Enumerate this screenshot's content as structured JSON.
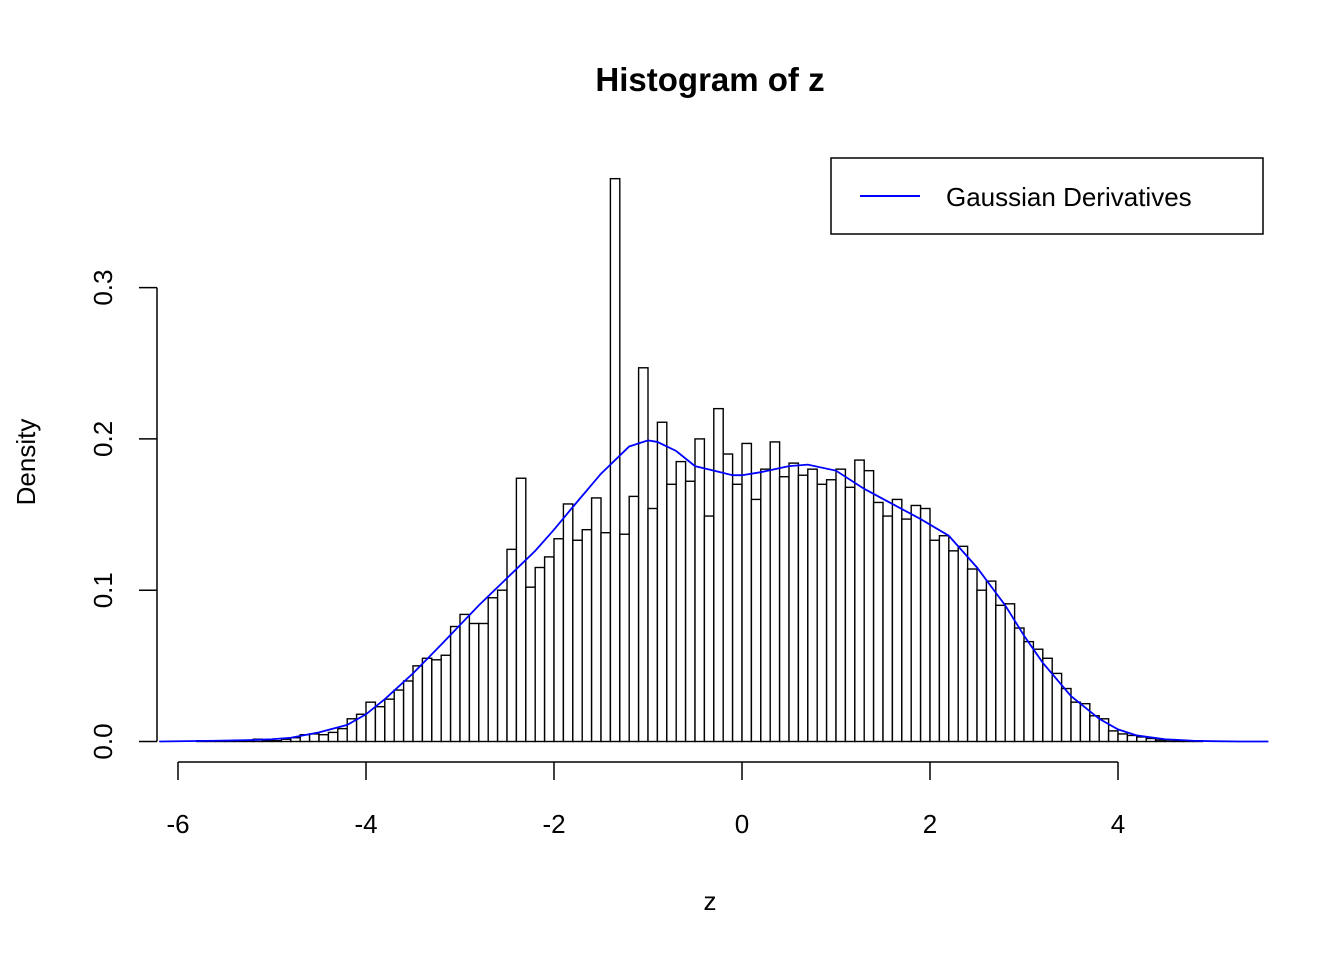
{
  "chart_data": {
    "type": "bar",
    "title": "Histogram of z",
    "xlabel": "z",
    "ylabel": "Density",
    "xlim": [
      -6.2,
      5.6
    ],
    "ylim": [
      0,
      0.38
    ],
    "x_ticks": [
      -6,
      -4,
      -2,
      0,
      2,
      4
    ],
    "x_tick_labels": [
      "-6",
      "-4",
      "-2",
      "0",
      "2",
      "4"
    ],
    "y_ticks": [
      0.0,
      0.1,
      0.2,
      0.3
    ],
    "y_tick_labels": [
      "0.0",
      "0.1",
      "0.2",
      "0.3"
    ],
    "bin_width": 0.1,
    "bins_start": -5.8,
    "histogram_values": [
      0.0005,
      0.0002,
      0.0002,
      0.0003,
      0.0005,
      0.0002,
      0.0015,
      0.0008,
      0.0005,
      0.0015,
      0.0025,
      0.0045,
      0.005,
      0.0045,
      0.006,
      0.0085,
      0.015,
      0.018,
      0.026,
      0.023,
      0.028,
      0.034,
      0.04,
      0.05,
      0.055,
      0.054,
      0.057,
      0.076,
      0.084,
      0.078,
      0.078,
      0.095,
      0.1,
      0.127,
      0.174,
      0.102,
      0.115,
      0.122,
      0.134,
      0.157,
      0.133,
      0.14,
      0.161,
      0.138,
      0.372,
      0.137,
      0.162,
      0.247,
      0.154,
      0.211,
      0.17,
      0.185,
      0.172,
      0.2,
      0.149,
      0.22,
      0.19,
      0.17,
      0.197,
      0.16,
      0.18,
      0.198,
      0.175,
      0.184,
      0.176,
      0.18,
      0.17,
      0.173,
      0.18,
      0.168,
      0.186,
      0.179,
      0.158,
      0.149,
      0.16,
      0.147,
      0.156,
      0.154,
      0.133,
      0.136,
      0.126,
      0.129,
      0.114,
      0.1,
      0.106,
      0.09,
      0.091,
      0.075,
      0.066,
      0.061,
      0.055,
      0.045,
      0.035,
      0.026,
      0.025,
      0.017,
      0.015,
      0.007,
      0.005,
      0.004,
      0.003,
      0.002,
      0.001,
      0.001,
      0.0005,
      0.0005,
      0.0003
    ],
    "series": [
      {
        "name": "Gaussian Derivatives",
        "color": "#0000ff",
        "x": [
          -6.2,
          -5.6,
          -5.2,
          -5.0,
          -4.8,
          -4.5,
          -4.2,
          -4.0,
          -3.8,
          -3.5,
          -3.2,
          -3.0,
          -2.8,
          -2.5,
          -2.2,
          -2.0,
          -1.8,
          -1.5,
          -1.2,
          -1.0,
          -0.9,
          -0.7,
          -0.5,
          -0.3,
          -0.1,
          0.0,
          0.2,
          0.5,
          0.7,
          1.0,
          1.3,
          1.6,
          1.9,
          2.2,
          2.5,
          2.8,
          3.0,
          3.2,
          3.5,
          3.8,
          4.0,
          4.2,
          4.5,
          4.8,
          5.0,
          5.3,
          5.6
        ],
        "y": [
          0.0,
          0.0005,
          0.001,
          0.0015,
          0.0025,
          0.006,
          0.011,
          0.018,
          0.028,
          0.045,
          0.064,
          0.077,
          0.09,
          0.108,
          0.126,
          0.14,
          0.155,
          0.177,
          0.195,
          0.199,
          0.198,
          0.192,
          0.182,
          0.179,
          0.176,
          0.176,
          0.178,
          0.182,
          0.183,
          0.179,
          0.167,
          0.157,
          0.147,
          0.136,
          0.115,
          0.09,
          0.07,
          0.052,
          0.03,
          0.015,
          0.008,
          0.004,
          0.0015,
          0.0005,
          0.0002,
          0.0,
          0.0
        ]
      }
    ],
    "legend_position": "top-right",
    "grid": false
  }
}
